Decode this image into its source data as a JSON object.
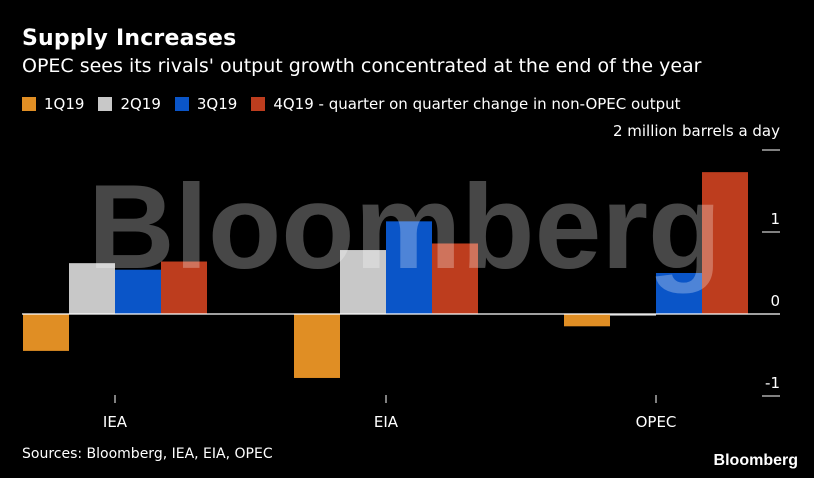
{
  "title": "Supply Increases",
  "subtitle": "OPEC sees its rivals' output growth concentrated at the end of the year",
  "unit_label": "2 million barrels a day",
  "source": "Sources: Bloomberg, IEA, EIA, OPEC",
  "brand": "Bloomberg",
  "watermark": "Bloomberg",
  "legend": {
    "items": [
      {
        "label": "1Q19",
        "color": "#e08e24"
      },
      {
        "label": "2Q19",
        "color": "#c8c8c8"
      },
      {
        "label": "3Q19",
        "color": "#0a55c8"
      },
      {
        "label": "4Q19 - quarter on quarter change in non-OPEC output",
        "color": "#bd3d1e"
      }
    ]
  },
  "chart_data": {
    "type": "bar",
    "title": "Supply Increases",
    "subtitle": "OPEC sees its rivals' output growth concentrated at the end of the year",
    "categories": [
      "IEA",
      "EIA",
      "OPEC"
    ],
    "series": [
      {
        "name": "1Q19",
        "color": "#e08e24",
        "values": [
          -0.45,
          -0.78,
          -0.15
        ]
      },
      {
        "name": "2Q19",
        "color": "#c8c8c8",
        "values": [
          0.62,
          0.78,
          -0.02
        ]
      },
      {
        "name": "3Q19",
        "color": "#0a55c8",
        "values": [
          0.54,
          1.13,
          0.5
        ]
      },
      {
        "name": "4Q19",
        "color": "#bd3d1e",
        "values": [
          0.64,
          0.86,
          1.73
        ]
      }
    ],
    "ylabel": "million barrels a day",
    "ylim": [
      -1,
      2
    ],
    "yticks": [
      -1,
      0,
      1,
      2
    ],
    "ytick_labels": [
      "-1",
      "0",
      "1",
      "2 million barrels a day"
    ],
    "axis_side": "right",
    "grid": false
  }
}
